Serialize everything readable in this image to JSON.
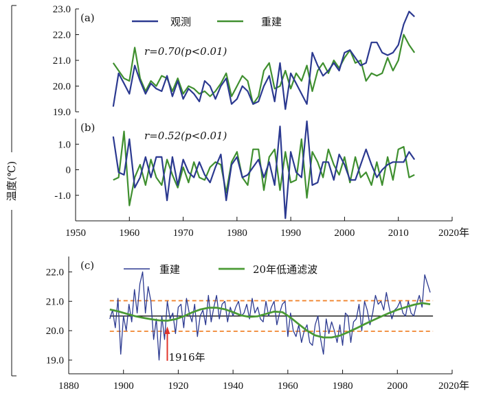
{
  "y_axis_label": "温度(℃)",
  "colors": {
    "observed": "#2b3990",
    "reconstructed": "#3f8f2f",
    "lowpass": "#4a9a34",
    "threshold": "#f0842c",
    "mean": "#222222",
    "arrow": "#e0342a"
  },
  "chart_data": [
    {
      "type": "line",
      "panel_label": "(a)",
      "annotation": "r=0.70(p<0.01)",
      "xlim": [
        1950,
        2020
      ],
      "ylim": [
        19.0,
        23.0
      ],
      "xticks": [
        1950,
        1960,
        1970,
        1980,
        1990,
        2000,
        2010,
        2020
      ],
      "xtick_labels": [
        "1950",
        "1960",
        "1970",
        "1980",
        "1990",
        "2000",
        "2010",
        "2020年"
      ],
      "yticks": [
        19.0,
        20.0,
        21.0,
        22.0,
        23.0
      ],
      "ytick_labels": [
        "19.0",
        "20.0",
        "21.0",
        "22.0",
        "23.0"
      ],
      "legend": [
        "观测",
        "重建"
      ],
      "x": [
        1957,
        1958,
        1959,
        1960,
        1961,
        1962,
        1963,
        1964,
        1965,
        1966,
        1967,
        1968,
        1969,
        1970,
        1971,
        1972,
        1973,
        1974,
        1975,
        1976,
        1977,
        1978,
        1979,
        1980,
        1981,
        1982,
        1983,
        1984,
        1985,
        1986,
        1987,
        1988,
        1989,
        1990,
        1991,
        1992,
        1993,
        1994,
        1995,
        1996,
        1997,
        1998,
        1999,
        2000,
        2001,
        2002,
        2003,
        2004,
        2005,
        2006,
        2007,
        2008,
        2009,
        2010,
        2011,
        2012,
        2013
      ],
      "series": [
        {
          "name": "观测",
          "values": [
            19.2,
            20.5,
            20.1,
            19.7,
            20.8,
            20.2,
            19.7,
            20.1,
            19.9,
            19.8,
            20.4,
            19.6,
            20.2,
            19.5,
            19.9,
            19.7,
            19.4,
            20.2,
            20.0,
            19.5,
            20.0,
            20.3,
            19.3,
            19.5,
            20.0,
            19.8,
            19.3,
            19.4,
            20.0,
            20.4,
            19.4,
            20.9,
            19.1,
            20.5,
            20.1,
            19.7,
            19.3,
            21.3,
            20.8,
            20.4,
            20.6,
            20.9,
            20.6,
            21.3,
            21.4,
            21.1,
            20.8,
            20.9,
            21.7,
            21.7,
            21.3,
            21.2,
            21.3,
            21.6,
            22.4,
            22.9,
            22.7
          ]
        },
        {
          "name": "重建",
          "values": [
            20.9,
            20.6,
            20.3,
            20.2,
            21.5,
            20.3,
            19.8,
            20.2,
            20.0,
            20.4,
            20.3,
            19.8,
            20.3,
            19.7,
            20.0,
            19.9,
            19.7,
            19.8,
            19.6,
            19.8,
            20.1,
            20.5,
            19.6,
            20.0,
            20.4,
            20.2,
            19.3,
            19.6,
            20.6,
            20.9,
            19.9,
            20.0,
            20.6,
            19.9,
            20.5,
            20.2,
            20.8,
            19.8,
            20.6,
            20.9,
            20.5,
            21.0,
            20.7,
            21.1,
            21.4,
            20.9,
            21.0,
            20.2,
            20.5,
            20.4,
            20.5,
            21.1,
            20.6,
            21.0,
            22.0,
            21.6,
            21.3
          ]
        }
      ]
    },
    {
      "type": "line",
      "panel_label": "(b)",
      "annotation": "r=0.52(p<0.01)",
      "xlim": [
        1950,
        2020
      ],
      "ylim": [
        -2.0,
        2.0
      ],
      "yticks": [
        -1.0,
        0,
        1.0
      ],
      "ytick_labels": [
        "-1.0",
        "0",
        "1.0"
      ],
      "x": [
        1957,
        1958,
        1959,
        1960,
        1961,
        1962,
        1963,
        1964,
        1965,
        1966,
        1967,
        1968,
        1969,
        1970,
        1971,
        1972,
        1973,
        1974,
        1975,
        1976,
        1977,
        1978,
        1979,
        1980,
        1981,
        1982,
        1983,
        1984,
        1985,
        1986,
        1987,
        1988,
        1989,
        1990,
        1991,
        1992,
        1993,
        1994,
        1995,
        1996,
        1997,
        1998,
        1999,
        2000,
        2001,
        2002,
        2003,
        2004,
        2005,
        2006,
        2007,
        2008,
        2009,
        2010,
        2011,
        2012,
        2013
      ],
      "series": [
        {
          "name": "观测",
          "values": [
            1.3,
            -0.1,
            -0.2,
            1.2,
            -0.7,
            -0.3,
            0.5,
            -0.3,
            0.5,
            0.5,
            -1.2,
            0.5,
            -0.6,
            0.4,
            -0.1,
            -0.3,
            0.3,
            -0.2,
            -0.5,
            0.1,
            0.6,
            -1.2,
            0.2,
            0.5,
            -0.3,
            -0.2,
            0.1,
            0.4,
            -0.3,
            0.3,
            -0.6,
            1.7,
            -1.9,
            0.7,
            -0.1,
            -0.3,
            1.9,
            -0.6,
            -0.5,
            0.3,
            0.3,
            -0.4,
            0.6,
            0.2,
            -0.4,
            -0.4,
            0.2,
            0.8,
            0.2,
            -0.3,
            0.0,
            0.2,
            0.3,
            0.3,
            0.3,
            0.7,
            0.4
          ]
        },
        {
          "name": "重建",
          "values": [
            -0.4,
            -0.3,
            1.5,
            -1.4,
            -0.3,
            0.2,
            -0.6,
            0.4,
            -0.3,
            -0.6,
            0.4,
            -0.2,
            -0.7,
            0.1,
            -0.5,
            0.3,
            -0.3,
            -0.4,
            0.1,
            0.3,
            0.2,
            -0.9,
            0.3,
            0.7,
            -0.3,
            -0.6,
            0.8,
            0.8,
            -0.8,
            0.5,
            0.8,
            -0.8,
            0.7,
            -0.5,
            -0.4,
            1.2,
            -1.1,
            0.7,
            0.3,
            -0.3,
            0.8,
            0.2,
            -0.2,
            0.5,
            -0.5,
            0.5,
            -0.3,
            -0.1,
            -0.6,
            0.3,
            -0.6,
            0.5,
            -0.4,
            0.8,
            0.9,
            -0.3,
            -0.2
          ]
        }
      ]
    },
    {
      "type": "line",
      "panel_label": "(c)",
      "xlim": [
        1880,
        2020
      ],
      "ylim": [
        19.0,
        22.5
      ],
      "xticks": [
        1880,
        1900,
        1920,
        1940,
        1960,
        1980,
        2000,
        2020
      ],
      "xtick_labels": [
        "1880",
        "1900",
        "1920",
        "1940",
        "1960",
        "1980",
        "2000",
        "2020年"
      ],
      "yticks": [
        19.0,
        20.0,
        21.0,
        22.0
      ],
      "ytick_labels": [
        "19.0",
        "20.0",
        "21.0",
        "22.0"
      ],
      "legend": [
        "重建",
        "20年低通滤波"
      ],
      "mean": 20.5,
      "upper_threshold": 21.02,
      "lower_threshold": 19.98,
      "arrow_year": 1916,
      "arrow_label": "1916年",
      "recon_start_year": 1895,
      "recon_values": [
        20.4,
        20.7,
        20.1,
        21.1,
        19.2,
        20.5,
        20.0,
        20.9,
        20.3,
        21.4,
        20.6,
        21.6,
        22.0,
        20.6,
        21.5,
        21.0,
        19.7,
        20.4,
        19.0,
        20.5,
        19.7,
        21.0,
        20.4,
        20.6,
        19.9,
        20.8,
        20.9,
        20.1,
        21.1,
        20.6,
        20.3,
        20.9,
        19.8,
        20.5,
        20.7,
        20.2,
        21.2,
        20.3,
        20.8,
        21.2,
        20.4,
        20.9,
        21.0,
        20.3,
        20.8,
        20.5,
        20.8,
        21.0,
        20.5,
        20.6,
        20.9,
        20.4,
        21.1,
        20.6,
        20.8,
        20.4,
        20.3,
        21.0,
        20.5,
        20.8,
        21.0,
        20.2,
        20.6,
        20.9,
        21.0,
        19.8,
        20.6,
        20.0,
        19.8,
        20.2,
        19.6,
        20.0,
        20.2,
        19.6,
        19.5,
        20.2,
        20.5,
        19.7,
        19.2,
        20.4,
        19.9,
        20.3,
        20.0,
        19.6,
        20.2,
        19.5,
        20.6,
        20.5,
        19.6,
        20.3,
        20.4,
        20.9,
        20.0,
        21.0,
        20.7,
        20.2,
        20.6,
        21.2,
        20.9,
        21.0,
        20.7,
        21.3,
        20.8,
        20.4,
        20.7,
        20.8,
        21.0,
        20.6,
        20.5,
        21.0,
        20.6,
        20.5,
        20.9,
        21.2,
        20.8,
        21.9,
        21.6,
        21.3
      ],
      "lowpass_x": [
        1895,
        1898,
        1901,
        1904,
        1907,
        1910,
        1913,
        1916,
        1919,
        1922,
        1925,
        1928,
        1931,
        1934,
        1937,
        1940,
        1943,
        1946,
        1949,
        1952,
        1955,
        1958,
        1961,
        1964,
        1967,
        1970,
        1973,
        1976,
        1979,
        1982,
        1985,
        1988,
        1991,
        1994,
        1997,
        2000,
        2003,
        2006,
        2009,
        2012
      ],
      "lowpass_values": [
        20.72,
        20.66,
        20.58,
        20.5,
        20.44,
        20.39,
        20.35,
        20.34,
        20.39,
        20.49,
        20.62,
        20.72,
        20.78,
        20.78,
        20.73,
        20.63,
        20.52,
        20.47,
        20.49,
        20.57,
        20.65,
        20.63,
        20.45,
        20.22,
        20.0,
        19.84,
        19.77,
        19.77,
        19.83,
        19.95,
        20.08,
        20.22,
        20.35,
        20.48,
        20.6,
        20.71,
        20.8,
        20.88,
        20.94,
        20.9
      ]
    }
  ]
}
